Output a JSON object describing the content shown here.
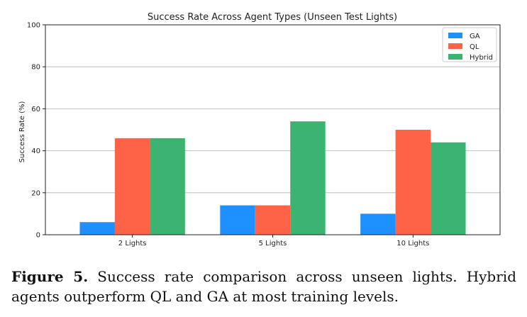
{
  "chart_data": {
    "type": "bar",
    "title": "Success Rate Across Agent Types (Unseen Test Lights)",
    "xlabel": "",
    "ylabel": "Success Rate (%)",
    "ylim": [
      0,
      100
    ],
    "yticks": [
      0,
      20,
      40,
      60,
      80,
      100
    ],
    "categories": [
      "2 Lights",
      "5 Lights",
      "10 Lights"
    ],
    "grid": "horizontal",
    "legend_position": "top-right",
    "series": [
      {
        "name": "GA",
        "color": "#1e90ff",
        "values": [
          6,
          14,
          10
        ]
      },
      {
        "name": "QL",
        "color": "#ff6347",
        "values": [
          46,
          14,
          50
        ]
      },
      {
        "name": "Hybrid",
        "color": "#3cb371",
        "values": [
          46,
          54,
          44
        ]
      }
    ]
  },
  "caption": {
    "label": "Figure 5.",
    "text": "Success rate comparison across unseen lights. Hybrid agents outperform QL and GA at most training levels."
  }
}
